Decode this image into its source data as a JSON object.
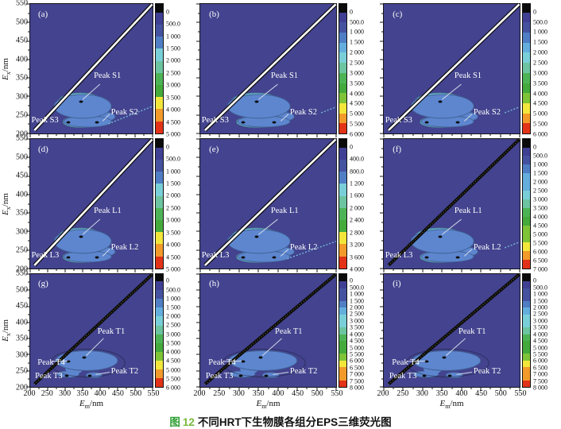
{
  "caption": {
    "fig": "图",
    "num": "12",
    "text": "不同HRT下生物膜各组分EPS三维荧光图"
  },
  "axes": {
    "x_main": "E",
    "x_sub": "m",
    "y_main": "E",
    "y_sub": "x",
    "unit": "/nm",
    "x_ticks": [
      "200",
      "250",
      "300",
      "350",
      "400",
      "450",
      "500",
      "550"
    ],
    "y_ticks": [
      "550",
      "500",
      "450",
      "400",
      "350",
      "300",
      "250",
      "200"
    ]
  },
  "colors": {
    "background": "#43438f",
    "envelope": "#5d86cf",
    "contour_rings": [
      "#6fc3dc",
      "#58bb9c",
      "#3fae4e",
      "#52b737",
      "#7cc435"
    ],
    "palette": [
      "#3f3f94",
      "#45529f",
      "#4f7ec5",
      "#64aede",
      "#79cfd8",
      "#6cc4a0",
      "#4db456",
      "#44aa3c",
      "#7fc337",
      "#f2e63b",
      "#f29a2a",
      "#e23318"
    ],
    "caption_green": "#2f9e33"
  },
  "chart_data": [
    {
      "id": "a",
      "label": "(a)",
      "type": "heatmap",
      "x_axis": "Em/nm",
      "y_axis": "Ex/nm",
      "x_range": [
        200,
        550
      ],
      "y_range": [
        200,
        550
      ],
      "row": "s",
      "scatter_line": "white",
      "second_order_line": "long",
      "colorbar_ticks": [
        "0",
        "500.0",
        "1 000",
        "1 500",
        "2 000",
        "2 500",
        "3 000",
        "3 500",
        "4 000",
        "4 500",
        "5 000"
      ],
      "core_colors": [
        "#c6d834",
        "#f2e63b"
      ],
      "peaks": [
        {
          "name": "Peak S1",
          "em": 345,
          "ex": 285
        },
        {
          "name": "Peak S2",
          "em": 390,
          "ex": 230
        },
        {
          "name": "Peak S3",
          "em": 310,
          "ex": 230
        }
      ]
    },
    {
      "id": "b",
      "label": "(b)",
      "type": "heatmap",
      "x_axis": "Em/nm",
      "y_axis": "Ex/nm",
      "x_range": [
        200,
        550
      ],
      "y_range": [
        200,
        550
      ],
      "row": "s",
      "scatter_line": "white",
      "second_order_line": "short",
      "colorbar_ticks": [
        "0",
        "500.0",
        "1 000",
        "1 500",
        "2 000",
        "2 500",
        "3 000",
        "3 500",
        "4 000",
        "4 500",
        "5 000",
        "5 500",
        "6 000"
      ],
      "core_colors": [
        "#a9ce36",
        "#f2e63b",
        "#f0922a",
        "#e03018"
      ],
      "peaks": [
        {
          "name": "Peak S1",
          "em": 345,
          "ex": 285
        },
        {
          "name": "Peak S2",
          "em": 390,
          "ex": 230
        },
        {
          "name": "Peak S3",
          "em": 310,
          "ex": 230
        }
      ]
    },
    {
      "id": "c",
      "label": "(c)",
      "type": "heatmap",
      "x_axis": "Em/nm",
      "y_axis": "Ex/nm",
      "x_range": [
        200,
        550
      ],
      "y_range": [
        200,
        550
      ],
      "row": "s",
      "scatter_line": "white",
      "second_order_line": "short",
      "colorbar_ticks": [
        "0",
        "500.0",
        "1 000",
        "1 500",
        "2 000",
        "2 500",
        "3 000",
        "3 500",
        "4 000",
        "4 500",
        "5 000",
        "5 500",
        "6 000"
      ],
      "core_colors": [
        "#f2e63b",
        "#f29a2a",
        "#e84a1c",
        "#d92516"
      ],
      "peaks": [
        {
          "name": "Peak S1",
          "em": 345,
          "ex": 285
        },
        {
          "name": "Peak S2",
          "em": 390,
          "ex": 230
        },
        {
          "name": "Peak S3",
          "em": 310,
          "ex": 230
        }
      ]
    },
    {
      "id": "d",
      "label": "(d)",
      "type": "heatmap",
      "x_axis": "Em/nm",
      "y_axis": "Ex/nm",
      "x_range": [
        200,
        550
      ],
      "y_range": [
        200,
        550
      ],
      "row": "l",
      "scatter_line": "white",
      "second_order_line": "none",
      "colorbar_ticks": [
        "0",
        "500.0",
        "1 000",
        "1 500",
        "2 000",
        "2 500",
        "3 000",
        "3 500",
        "4 000",
        "4 500",
        "5 000"
      ],
      "core_colors": [
        "#a9ce36",
        "#f2e63b",
        "#ef5d1f"
      ],
      "peaks": [
        {
          "name": "Peak L1",
          "em": 345,
          "ex": 285
        },
        {
          "name": "Peak L2",
          "em": 390,
          "ex": 230
        },
        {
          "name": "Peak L3",
          "em": 310,
          "ex": 230
        }
      ]
    },
    {
      "id": "e",
      "label": "(e)",
      "type": "heatmap",
      "x_axis": "Em/nm",
      "y_axis": "Ex/nm",
      "x_range": [
        200,
        550
      ],
      "y_range": [
        200,
        550
      ],
      "row": "l",
      "scatter_line": "white",
      "second_order_line": "long",
      "colorbar_ticks": [
        "0",
        "400.0",
        "800.0",
        "1 200",
        "1 600",
        "2 000",
        "2 400",
        "2 800",
        "3 200",
        "3 600",
        "4 000"
      ],
      "core_colors": [
        "#a9ce36",
        "#f2e63b",
        "#e23318"
      ],
      "peaks": [
        {
          "name": "Peak L1",
          "em": 345,
          "ex": 285
        },
        {
          "name": "Peak L2",
          "em": 390,
          "ex": 230
        },
        {
          "name": "Peak L3",
          "em": 310,
          "ex": 230
        }
      ]
    },
    {
      "id": "f",
      "label": "(f)",
      "type": "heatmap",
      "x_axis": "Em/nm",
      "y_axis": "Ex/nm",
      "x_range": [
        200,
        550
      ],
      "y_range": [
        200,
        550
      ],
      "row": "l",
      "scatter_line": "dark",
      "second_order_line": "short",
      "colorbar_ticks": [
        "0",
        "500.0",
        "1 000",
        "1 500",
        "2 000",
        "2 500",
        "3 000",
        "3 500",
        "4 000",
        "4 500",
        "5 000",
        "5 500",
        "6 000",
        "6 500",
        "7 000"
      ],
      "core_colors": [
        "#a9ce36",
        "#f2e63b",
        "#e84818"
      ],
      "peaks": [
        {
          "name": "Peak L1",
          "em": 345,
          "ex": 285
        },
        {
          "name": "Peak L2",
          "em": 390,
          "ex": 230
        },
        {
          "name": "Peak L3",
          "em": 310,
          "ex": 230
        }
      ]
    },
    {
      "id": "g",
      "label": "(g)",
      "type": "heatmap",
      "x_axis": "Em/nm",
      "y_axis": "Ex/nm",
      "x_range": [
        200,
        550
      ],
      "y_range": [
        200,
        550
      ],
      "row": "t",
      "scatter_line": "dark",
      "second_order_line": "none",
      "colorbar_ticks": [
        "0",
        "500.0",
        "1 000",
        "1 500",
        "2 000",
        "2 500",
        "3 000",
        "3 500",
        "4 000",
        "4 500",
        "5 000",
        "5 500",
        "6 000"
      ],
      "core_colors": [
        "#a9ce36",
        "#f2e63b",
        "#f29a2a",
        "#df2c16"
      ],
      "peaks": [
        {
          "name": "Peak T1",
          "em": 355,
          "ex": 290
        },
        {
          "name": "Peak T2",
          "em": 370,
          "ex": 235
        },
        {
          "name": "Peak T3",
          "em": 305,
          "ex": 235
        },
        {
          "name": "Peak T4",
          "em": 310,
          "ex": 280
        }
      ]
    },
    {
      "id": "h",
      "label": "(h)",
      "type": "heatmap",
      "x_axis": "Em/nm",
      "y_axis": "Ex/nm",
      "x_range": [
        200,
        550
      ],
      "y_range": [
        200,
        550
      ],
      "row": "t",
      "scatter_line": "dark",
      "second_order_line": "none",
      "colorbar_ticks": [
        "0",
        "500.0",
        "1 000",
        "1 500",
        "2 000",
        "2 500",
        "3 000",
        "3 500",
        "4 000",
        "4 500",
        "5 000",
        "5 500",
        "6 000",
        "6 500",
        "7 000",
        "7 500",
        "8 000"
      ],
      "core_colors": [
        "#c6d834",
        "#f2e63b",
        "#f0a028"
      ],
      "peaks": [
        {
          "name": "Peak T1",
          "em": 355,
          "ex": 290
        },
        {
          "name": "Peak T2",
          "em": 370,
          "ex": 235
        },
        {
          "name": "Peak T3",
          "em": 305,
          "ex": 235
        },
        {
          "name": "Peak T4",
          "em": 310,
          "ex": 280
        }
      ]
    },
    {
      "id": "i",
      "label": "(i)",
      "type": "heatmap",
      "x_axis": "Em/nm",
      "y_axis": "Ex/nm",
      "x_range": [
        200,
        550
      ],
      "y_range": [
        200,
        550
      ],
      "row": "t",
      "scatter_line": "dark",
      "second_order_line": "none",
      "colorbar_ticks": [
        "0",
        "500.0",
        "1 000",
        "1 500",
        "2 000",
        "2 500",
        "3 000",
        "3 500",
        "4 000",
        "4 500",
        "5 000",
        "5 500",
        "6 000",
        "6 500",
        "7 000",
        "7 500",
        "8 000"
      ],
      "core_colors": [
        "#c6d834",
        "#f2e63b",
        "#ef8c20"
      ],
      "peaks": [
        {
          "name": "Peak T1",
          "em": 355,
          "ex": 290
        },
        {
          "name": "Peak T2",
          "em": 370,
          "ex": 235
        },
        {
          "name": "Peak T3",
          "em": 305,
          "ex": 235
        },
        {
          "name": "Peak T4",
          "em": 310,
          "ex": 280
        }
      ]
    }
  ]
}
